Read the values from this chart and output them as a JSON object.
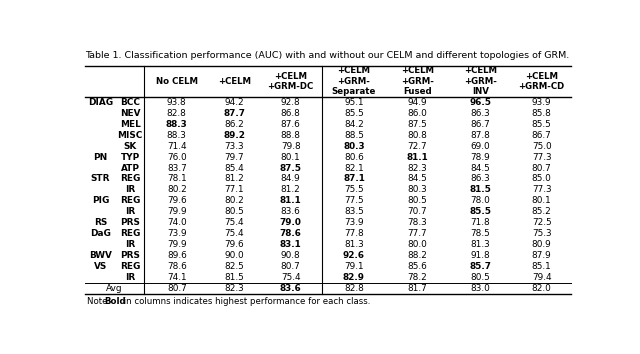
{
  "title": "Table 1. Classification performance (AUC) with and without our CELM and different topologies of GRM.",
  "columns": [
    "No CELM",
    "+CELM",
    "+CELM\n+GRM-DC",
    "+CELM\n+GRM-\nSeparate",
    "+CELM\n+GRM-\nFused",
    "+CELM\n+GRM-\nINV",
    "+CELM\n+GRM-CD"
  ],
  "rows": [
    {
      "group": "DIAG",
      "label": "BCC",
      "values": [
        93.8,
        94.2,
        92.8,
        95.1,
        94.9,
        96.5,
        93.9
      ],
      "bold": [
        false,
        false,
        false,
        false,
        false,
        true,
        false
      ]
    },
    {
      "group": "",
      "label": "NEV",
      "values": [
        82.8,
        87.7,
        86.8,
        85.5,
        86.0,
        86.3,
        85.8
      ],
      "bold": [
        false,
        true,
        false,
        false,
        false,
        false,
        false
      ]
    },
    {
      "group": "",
      "label": "MEL",
      "values": [
        88.3,
        86.2,
        87.6,
        84.2,
        87.5,
        86.7,
        85.5
      ],
      "bold": [
        true,
        false,
        false,
        false,
        false,
        false,
        false
      ]
    },
    {
      "group": "",
      "label": "MISC",
      "values": [
        88.3,
        89.2,
        88.8,
        88.5,
        80.8,
        87.8,
        86.7
      ],
      "bold": [
        false,
        true,
        false,
        false,
        false,
        false,
        false
      ]
    },
    {
      "group": "",
      "label": "SK",
      "values": [
        71.4,
        73.3,
        79.8,
        80.3,
        72.7,
        69.0,
        75.0
      ],
      "bold": [
        false,
        false,
        false,
        true,
        false,
        false,
        false
      ]
    },
    {
      "group": "PN",
      "label": "TYP",
      "values": [
        76.0,
        79.7,
        80.1,
        80.6,
        81.1,
        78.9,
        77.3
      ],
      "bold": [
        false,
        false,
        false,
        false,
        true,
        false,
        false
      ]
    },
    {
      "group": "",
      "label": "ATP",
      "values": [
        83.7,
        85.4,
        87.5,
        82.1,
        82.3,
        84.5,
        80.7
      ],
      "bold": [
        false,
        false,
        true,
        false,
        false,
        false,
        false
      ]
    },
    {
      "group": "STR",
      "label": "REG",
      "values": [
        78.1,
        81.2,
        84.9,
        87.1,
        84.5,
        86.3,
        85.0
      ],
      "bold": [
        false,
        false,
        false,
        true,
        false,
        false,
        false
      ]
    },
    {
      "group": "",
      "label": "IR",
      "values": [
        80.2,
        77.1,
        81.2,
        75.5,
        80.3,
        81.5,
        77.3
      ],
      "bold": [
        false,
        false,
        false,
        false,
        false,
        true,
        false
      ]
    },
    {
      "group": "PIG",
      "label": "REG",
      "values": [
        79.6,
        80.2,
        81.1,
        77.5,
        80.5,
        78.0,
        80.1
      ],
      "bold": [
        false,
        false,
        true,
        false,
        false,
        false,
        false
      ]
    },
    {
      "group": "",
      "label": "IR",
      "values": [
        79.9,
        80.5,
        83.6,
        83.5,
        70.7,
        85.5,
        85.2
      ],
      "bold": [
        false,
        false,
        false,
        false,
        false,
        true,
        false
      ]
    },
    {
      "group": "RS",
      "label": "PRS",
      "values": [
        74.0,
        75.4,
        79.0,
        73.9,
        78.3,
        71.8,
        72.5
      ],
      "bold": [
        false,
        false,
        true,
        false,
        false,
        false,
        false
      ]
    },
    {
      "group": "DaG",
      "label": "REG",
      "values": [
        73.9,
        75.4,
        78.6,
        77.8,
        77.7,
        78.5,
        75.3
      ],
      "bold": [
        false,
        false,
        true,
        false,
        false,
        false,
        false
      ]
    },
    {
      "group": "",
      "label": "IR",
      "values": [
        79.9,
        79.6,
        83.1,
        81.3,
        80.0,
        81.3,
        80.9
      ],
      "bold": [
        false,
        false,
        true,
        false,
        false,
        false,
        false
      ]
    },
    {
      "group": "BWV",
      "label": "PRS",
      "values": [
        89.6,
        90.0,
        90.8,
        92.6,
        88.2,
        91.8,
        87.9
      ],
      "bold": [
        false,
        false,
        false,
        true,
        false,
        false,
        false
      ]
    },
    {
      "group": "VS",
      "label": "REG",
      "values": [
        78.6,
        82.5,
        80.7,
        79.1,
        85.6,
        85.7,
        85.1
      ],
      "bold": [
        false,
        false,
        false,
        false,
        false,
        true,
        false
      ]
    },
    {
      "group": "",
      "label": "IR",
      "values": [
        74.1,
        81.5,
        75.4,
        82.9,
        78.2,
        80.5,
        79.4
      ],
      "bold": [
        false,
        false,
        false,
        true,
        false,
        false,
        false
      ]
    }
  ],
  "avg_row": {
    "label": "Avg",
    "values": [
      80.7,
      82.3,
      83.6,
      82.8,
      81.7,
      83.0,
      82.0
    ],
    "bold": [
      false,
      false,
      true,
      false,
      false,
      false,
      false
    ]
  },
  "separator_col_idx": 3,
  "bg_color": "#ffffff"
}
